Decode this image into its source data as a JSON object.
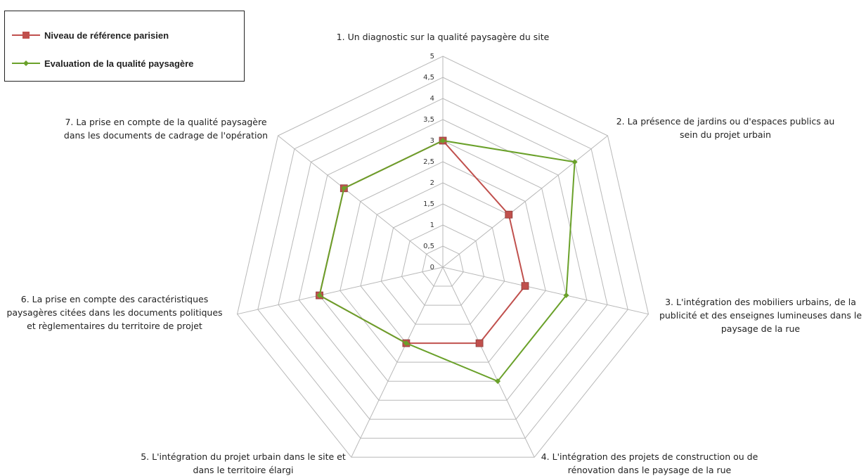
{
  "chart_data": {
    "type": "radar",
    "categories": [
      "1. Un diagnostic sur la qualité paysagère du site",
      "2. La présence de jardins ou d'espaces publics au sein du projet urbain",
      "3. L'intégration des mobiliers urbains, de la publicité et des enseignes lumineuses dans le paysage de la rue",
      "4. L'intégration des projets de construction ou de rénovation dans le paysage de la rue",
      "5. L'intégration du projet urbain dans le site et dans le territoire élargi",
      "6. La prise en compte des caractéristiques paysagères citées dans les documents politiques et règlementaires du territoire de projet",
      "7. La prise en compte de la qualité paysagère dans les documents de cadrage de l'opération"
    ],
    "category_lines": [
      [
        "1. Un diagnostic sur la qualité paysagère du site"
      ],
      [
        "2. La présence de jardins ou d'espaces publics au",
        "sein du projet urbain"
      ],
      [
        "3. L'intégration des mobiliers urbains, de la",
        "publicité et des enseignes lumineuses dans le",
        "paysage de la rue"
      ],
      [
        "4. L'intégration des projets de construction ou de",
        "rénovation dans le paysage de la rue"
      ],
      [
        "5. L'intégration du projet urbain dans le site et",
        "dans le territoire élargi"
      ],
      [
        "6. La prise en compte des caractéristiques",
        "paysagères  citées dans les documents politiques",
        "et règlementaires du territoire de projet"
      ],
      [
        "7. La prise en compte de la qualité paysagère",
        "dans les documents de cadrage de l'opération"
      ]
    ],
    "series": [
      {
        "name": "Niveau de référence parisien",
        "color": "#c0504d",
        "marker": "square",
        "values": [
          3,
          2,
          2,
          2,
          2,
          3,
          3
        ]
      },
      {
        "name": "Evaluation de la qualité paysagère",
        "color": "#6aa12a",
        "marker": "diamond",
        "values": [
          3,
          4,
          3,
          3,
          2,
          3,
          3
        ]
      }
    ],
    "rlim": [
      0,
      5
    ],
    "ticks": [
      "0",
      "0,5",
      "1",
      "1,5",
      "2",
      "2,5",
      "3",
      "3,5",
      "4",
      "4,5",
      "5"
    ],
    "tick_values": [
      0,
      0.5,
      1,
      1.5,
      2,
      2.5,
      3,
      3.5,
      4,
      4.5,
      5
    ],
    "grid": true,
    "legend_position": "top-left",
    "grid_color": "#b8b8b8"
  }
}
